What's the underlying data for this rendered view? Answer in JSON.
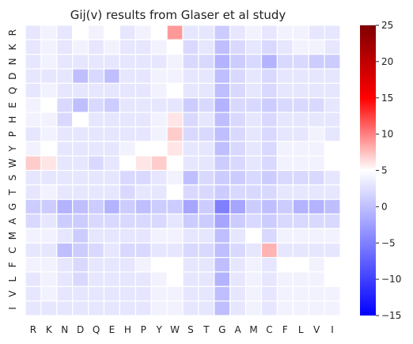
{
  "chart_data": {
    "type": "heatmap",
    "title": "Gij(v) results from Glaser et al study",
    "row_labels": [
      "R",
      "K",
      "N",
      "D",
      "Q",
      "E",
      "H",
      "P",
      "Y",
      "W",
      "S",
      "T",
      "G",
      "A",
      "M",
      "C",
      "F",
      "L",
      "V",
      "I"
    ],
    "col_labels": [
      "R",
      "K",
      "N",
      "D",
      "Q",
      "E",
      "H",
      "P",
      "Y",
      "W",
      "S",
      "T",
      "G",
      "A",
      "M",
      "C",
      "F",
      "L",
      "V",
      "I"
    ],
    "values": [
      [
        3,
        4,
        3,
        5,
        4,
        5,
        3,
        4,
        5,
        9,
        3,
        3,
        1,
        3,
        4,
        3,
        4,
        4,
        3,
        3
      ],
      [
        3,
        4,
        3,
        4,
        3,
        4,
        3,
        3,
        4,
        5,
        2,
        3,
        0,
        2,
        3,
        2,
        3,
        4,
        4,
        3
      ],
      [
        3,
        4,
        3,
        3,
        3,
        3,
        3,
        3,
        3,
        4,
        2,
        2,
        -1,
        1,
        2,
        -1,
        2,
        2,
        1,
        1
      ],
      [
        3,
        3,
        3,
        0,
        2,
        0,
        3,
        3,
        4,
        4,
        3,
        3,
        0,
        2,
        3,
        2,
        3,
        3,
        3,
        3
      ],
      [
        3,
        4,
        3,
        3,
        3,
        3,
        3,
        3,
        4,
        5,
        3,
        3,
        0,
        2,
        3,
        2,
        3,
        3,
        3,
        3
      ],
      [
        4,
        5,
        2,
        0,
        2,
        1,
        3,
        3,
        3,
        3,
        1,
        2,
        -1,
        2,
        2,
        1,
        2,
        2,
        2,
        3
      ],
      [
        4,
        4,
        2,
        5,
        3,
        3,
        3,
        3,
        4,
        6,
        2,
        3,
        0,
        2,
        3,
        2,
        3,
        3,
        3,
        3
      ],
      [
        3,
        4,
        3,
        3,
        3,
        3,
        3,
        3,
        4,
        7,
        2,
        2,
        0,
        2,
        3,
        2,
        3,
        3,
        4,
        3
      ],
      [
        4,
        5,
        3,
        3,
        3,
        3,
        4,
        5,
        5,
        6,
        3,
        3,
        0,
        2,
        3,
        2,
        4,
        4,
        4,
        5
      ],
      [
        7,
        6,
        3,
        3,
        2,
        3,
        5,
        6,
        7,
        5,
        3,
        3,
        1,
        2,
        3,
        2,
        4,
        4,
        4,
        5
      ],
      [
        3,
        3,
        3,
        3,
        3,
        3,
        2,
        2,
        3,
        4,
        0,
        2,
        1,
        1,
        2,
        1,
        2,
        2,
        2,
        3
      ],
      [
        3,
        4,
        3,
        3,
        3,
        3,
        2,
        3,
        3,
        5,
        2,
        2,
        1,
        2,
        2,
        2,
        3,
        3,
        3,
        3
      ],
      [
        1,
        1,
        -1,
        0,
        1,
        -1,
        1,
        0,
        1,
        1,
        -2,
        1,
        -5,
        -2,
        1,
        0,
        1,
        -1,
        -1,
        0
      ],
      [
        2,
        3,
        1,
        1,
        2,
        2,
        2,
        2,
        2,
        3,
        1,
        1,
        -2,
        1,
        2,
        1,
        2,
        2,
        2,
        2
      ],
      [
        4,
        4,
        3,
        1,
        3,
        3,
        3,
        3,
        4,
        4,
        3,
        3,
        0,
        3,
        5,
        2,
        4,
        4,
        4,
        4
      ],
      [
        3,
        3,
        0,
        1,
        2,
        3,
        2,
        2,
        3,
        3,
        2,
        2,
        0,
        2,
        3,
        8,
        3,
        3,
        3,
        3
      ],
      [
        4,
        4,
        3,
        2,
        3,
        3,
        3,
        4,
        5,
        5,
        3,
        3,
        0,
        3,
        4,
        3,
        5,
        5,
        4,
        5
      ],
      [
        3,
        4,
        3,
        2,
        3,
        3,
        3,
        3,
        4,
        5,
        3,
        3,
        -1,
        3,
        4,
        3,
        4,
        4,
        4,
        5
      ],
      [
        3,
        4,
        3,
        3,
        3,
        3,
        3,
        3,
        4,
        4,
        3,
        3,
        0,
        3,
        4,
        3,
        4,
        4,
        4,
        4
      ],
      [
        3,
        3,
        3,
        3,
        3,
        3,
        3,
        3,
        4,
        4,
        3,
        3,
        0,
        3,
        4,
        3,
        4,
        4,
        4,
        4
      ]
    ],
    "vmin": -15,
    "vmax": 25,
    "colormap": "bwr",
    "colors": {
      "low": "#0000ff",
      "mid": "#ffffff",
      "high": "#ff0000",
      "top": "#800000"
    },
    "colorbar_ticks": [
      25,
      20,
      15,
      10,
      5,
      0,
      -5,
      -10,
      -15
    ],
    "grid": false
  }
}
